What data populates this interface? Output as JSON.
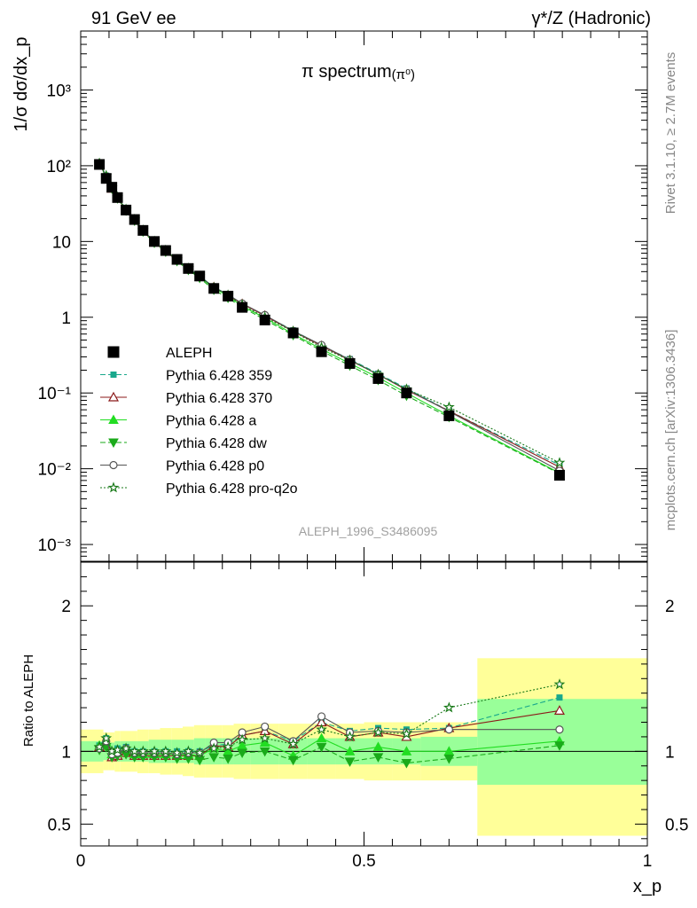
{
  "header": {
    "left_label": "91 GeV ee",
    "right_label": "γ*/Z (Hadronic)"
  },
  "side_labels": {
    "rivet": "Rivet 3.1.10, ≥ 2.7M events",
    "mcplots": "mcplots.cern.ch [arXiv:1306.3436]"
  },
  "chart_data": [
    {
      "type": "line",
      "title": "π spectrum",
      "title_suffix": "(π⁰)",
      "ylabel": "1/σ dσ/dx_p",
      "y_scale": "log",
      "ylim": [
        0.0006,
        6000
      ],
      "xlim": [
        0,
        1
      ],
      "analysis_label": "ALEPH_1996_S3486095",
      "y_tick_labels": [
        "10⁻³",
        "10⁻²",
        "10⁻¹",
        "1",
        "10",
        "10²",
        "10³"
      ],
      "legend_position": "center-left",
      "x": [
        0.033,
        0.045,
        0.055,
        0.065,
        0.08,
        0.095,
        0.11,
        0.13,
        0.15,
        0.17,
        0.19,
        0.21,
        0.235,
        0.26,
        0.285,
        0.325,
        0.375,
        0.425,
        0.475,
        0.525,
        0.575,
        0.65,
        0.845
      ],
      "series": [
        {
          "name": "ALEPH",
          "color": "#000000",
          "marker": "square",
          "values": [
            104,
            68,
            52,
            38,
            26,
            19.5,
            14,
            10,
            7.6,
            5.8,
            4.4,
            3.5,
            2.4,
            1.9,
            1.35,
            0.92,
            0.62,
            0.35,
            0.245,
            0.155,
            0.1,
            0.05,
            0.0082
          ]
        },
        {
          "name": "Pythia 6.428 359",
          "color": "#19a88c",
          "marker": "small-square",
          "dash": "dashed",
          "values": [
            108,
            74,
            52,
            39,
            27,
            19.5,
            14,
            10,
            7.6,
            5.8,
            4.4,
            3.5,
            2.5,
            2.0,
            1.5,
            1.05,
            0.67,
            0.42,
            0.28,
            0.18,
            0.115,
            0.058,
            0.0112
          ]
        },
        {
          "name": "Pythia 6.428 370",
          "color": "#8b1a1a",
          "marker": "open-triangle",
          "dash": "solid",
          "values": [
            107,
            71,
            50,
            37,
            26,
            19,
            13.6,
            9.7,
            7.4,
            5.6,
            4.3,
            3.4,
            2.5,
            1.95,
            1.5,
            1.05,
            0.65,
            0.42,
            0.27,
            0.175,
            0.11,
            0.058,
            0.0105
          ]
        },
        {
          "name": "Pythia 6.428 a",
          "color": "#22dd22",
          "marker": "filled-triangle",
          "dash": "solid",
          "values": [
            108,
            72,
            51,
            37.5,
            26.5,
            19.2,
            13.8,
            9.8,
            7.5,
            5.7,
            4.3,
            3.4,
            2.45,
            1.9,
            1.4,
            0.98,
            0.6,
            0.38,
            0.245,
            0.16,
            0.1,
            0.05,
            0.0088
          ]
        },
        {
          "name": "Pythia 6.428 dw",
          "color": "#1aaa1a",
          "marker": "inverted-triangle",
          "dash": "dashed",
          "values": [
            105,
            70,
            50,
            37,
            25.5,
            18.8,
            13.5,
            9.6,
            7.3,
            5.5,
            4.2,
            3.3,
            2.3,
            1.8,
            1.35,
            0.93,
            0.58,
            0.36,
            0.23,
            0.148,
            0.092,
            0.048,
            0.0086
          ]
        },
        {
          "name": "Pythia 6.428 p0",
          "color": "#555555",
          "marker": "open-circle",
          "dash": "solid",
          "values": [
            106,
            73,
            51,
            38,
            26.5,
            19.3,
            13.9,
            9.9,
            7.5,
            5.7,
            4.35,
            3.45,
            2.5,
            1.98,
            1.52,
            1.07,
            0.66,
            0.43,
            0.275,
            0.175,
            0.112,
            0.057,
            0.0094
          ]
        },
        {
          "name": "Pythia 6.428 pro-q2o",
          "color": "#1a7a1a",
          "marker": "open-star",
          "dash": "dotted",
          "values": [
            107,
            74,
            52,
            38.5,
            26.5,
            19.4,
            14,
            10,
            7.6,
            5.75,
            4.4,
            3.45,
            2.45,
            1.95,
            1.45,
            1.0,
            0.65,
            0.4,
            0.27,
            0.175,
            0.112,
            0.065,
            0.012
          ]
        }
      ]
    },
    {
      "type": "line",
      "ylabel": "Ratio to ALEPH",
      "xlabel": "x_p",
      "xlim": [
        0,
        1
      ],
      "ylim": [
        0.35,
        2.3
      ],
      "y_scale": "linear",
      "reference_line": 1,
      "x_tick_labels": [
        "0",
        "0.5",
        "1"
      ],
      "y_tick_labels": [
        "0.5",
        "1",
        "2"
      ],
      "bin_edges": [
        0.0,
        0.04,
        0.05,
        0.06,
        0.07,
        0.09,
        0.1,
        0.12,
        0.14,
        0.16,
        0.18,
        0.2,
        0.22,
        0.25,
        0.27,
        0.3,
        0.35,
        0.4,
        0.45,
        0.5,
        0.55,
        0.6,
        0.7,
        1.0
      ],
      "bands": {
        "yellow": {
          "color": "#ffff99",
          "low": [
            0.85,
            0.87,
            0.87,
            0.86,
            0.86,
            0.86,
            0.85,
            0.85,
            0.84,
            0.84,
            0.83,
            0.82,
            0.82,
            0.82,
            0.81,
            0.81,
            0.81,
            0.81,
            0.81,
            0.8,
            0.8,
            0.8,
            0.42
          ],
          "high": [
            1.15,
            1.13,
            1.13,
            1.14,
            1.14,
            1.14,
            1.15,
            1.15,
            1.16,
            1.16,
            1.17,
            1.18,
            1.18,
            1.18,
            1.19,
            1.19,
            1.19,
            1.19,
            1.19,
            1.2,
            1.2,
            1.2,
            1.64
          ]
        },
        "green": {
          "color": "#99ff99",
          "low": [
            0.93,
            0.94,
            0.94,
            0.93,
            0.93,
            0.93,
            0.93,
            0.92,
            0.92,
            0.92,
            0.92,
            0.91,
            0.91,
            0.91,
            0.91,
            0.91,
            0.91,
            0.91,
            0.91,
            0.91,
            0.91,
            0.9,
            0.77
          ],
          "high": [
            1.07,
            1.06,
            1.06,
            1.07,
            1.07,
            1.07,
            1.07,
            1.08,
            1.08,
            1.08,
            1.08,
            1.09,
            1.09,
            1.09,
            1.09,
            1.09,
            1.09,
            1.09,
            1.09,
            1.09,
            1.09,
            1.1,
            1.36
          ]
        }
      },
      "x": [
        0.033,
        0.045,
        0.055,
        0.065,
        0.08,
        0.095,
        0.11,
        0.13,
        0.15,
        0.17,
        0.19,
        0.21,
        0.235,
        0.26,
        0.285,
        0.325,
        0.375,
        0.425,
        0.475,
        0.525,
        0.575,
        0.65,
        0.845
      ],
      "series": [
        {
          "name": "Pythia 6.428 359",
          "color": "#19a88c",
          "marker": "small-square",
          "dash": "dashed",
          "values": [
            1.04,
            1.09,
            1.0,
            1.02,
            1.03,
            1.0,
            1.0,
            1.0,
            1.0,
            1.0,
            1.0,
            1.0,
            1.04,
            1.05,
            1.11,
            1.14,
            1.07,
            1.2,
            1.14,
            1.16,
            1.15,
            1.16,
            1.37
          ]
        },
        {
          "name": "Pythia 6.428 370",
          "color": "#8b1a1a",
          "marker": "open-triangle",
          "dash": "solid",
          "values": [
            1.03,
            1.04,
            0.96,
            0.97,
            0.99,
            0.97,
            0.97,
            0.97,
            0.97,
            0.97,
            0.97,
            0.97,
            1.04,
            1.03,
            1.11,
            1.14,
            1.05,
            1.2,
            1.1,
            1.13,
            1.1,
            1.16,
            1.28
          ]
        },
        {
          "name": "Pythia 6.428 a",
          "color": "#22dd22",
          "marker": "filled-triangle",
          "dash": "solid",
          "values": [
            1.04,
            1.06,
            0.98,
            0.99,
            1.02,
            0.98,
            0.98,
            0.98,
            0.98,
            0.98,
            0.98,
            0.97,
            1.02,
            1.0,
            1.04,
            1.06,
            0.97,
            1.09,
            1.0,
            1.03,
            1.0,
            1.0,
            1.07
          ]
        },
        {
          "name": "Pythia 6.428 dw",
          "color": "#1aaa1a",
          "marker": "inverted-triangle",
          "dash": "dashed",
          "values": [
            1.01,
            1.03,
            0.96,
            0.97,
            0.98,
            0.96,
            0.96,
            0.96,
            0.96,
            0.95,
            0.95,
            0.94,
            0.96,
            0.95,
            0.99,
            1.0,
            0.94,
            1.03,
            0.93,
            0.96,
            0.92,
            0.95,
            1.04
          ]
        },
        {
          "name": "Pythia 6.428 p0",
          "color": "#555555",
          "marker": "open-circle",
          "dash": "solid",
          "values": [
            1.02,
            1.07,
            0.98,
            0.99,
            1.02,
            0.99,
            0.99,
            0.99,
            0.99,
            0.98,
            0.99,
            0.99,
            1.06,
            1.06,
            1.13,
            1.17,
            1.07,
            1.24,
            1.13,
            1.14,
            1.13,
            1.15,
            1.15
          ]
        },
        {
          "name": "Pythia 6.428 pro-q2o",
          "color": "#1a7a1a",
          "marker": "open-star",
          "dash": "dotted",
          "values": [
            1.03,
            1.09,
            1.0,
            1.01,
            1.02,
            1.0,
            1.0,
            1.0,
            1.0,
            0.99,
            1.0,
            0.99,
            1.02,
            1.03,
            1.08,
            1.09,
            1.05,
            1.15,
            1.1,
            1.13,
            1.12,
            1.3,
            1.46
          ]
        }
      ]
    }
  ]
}
